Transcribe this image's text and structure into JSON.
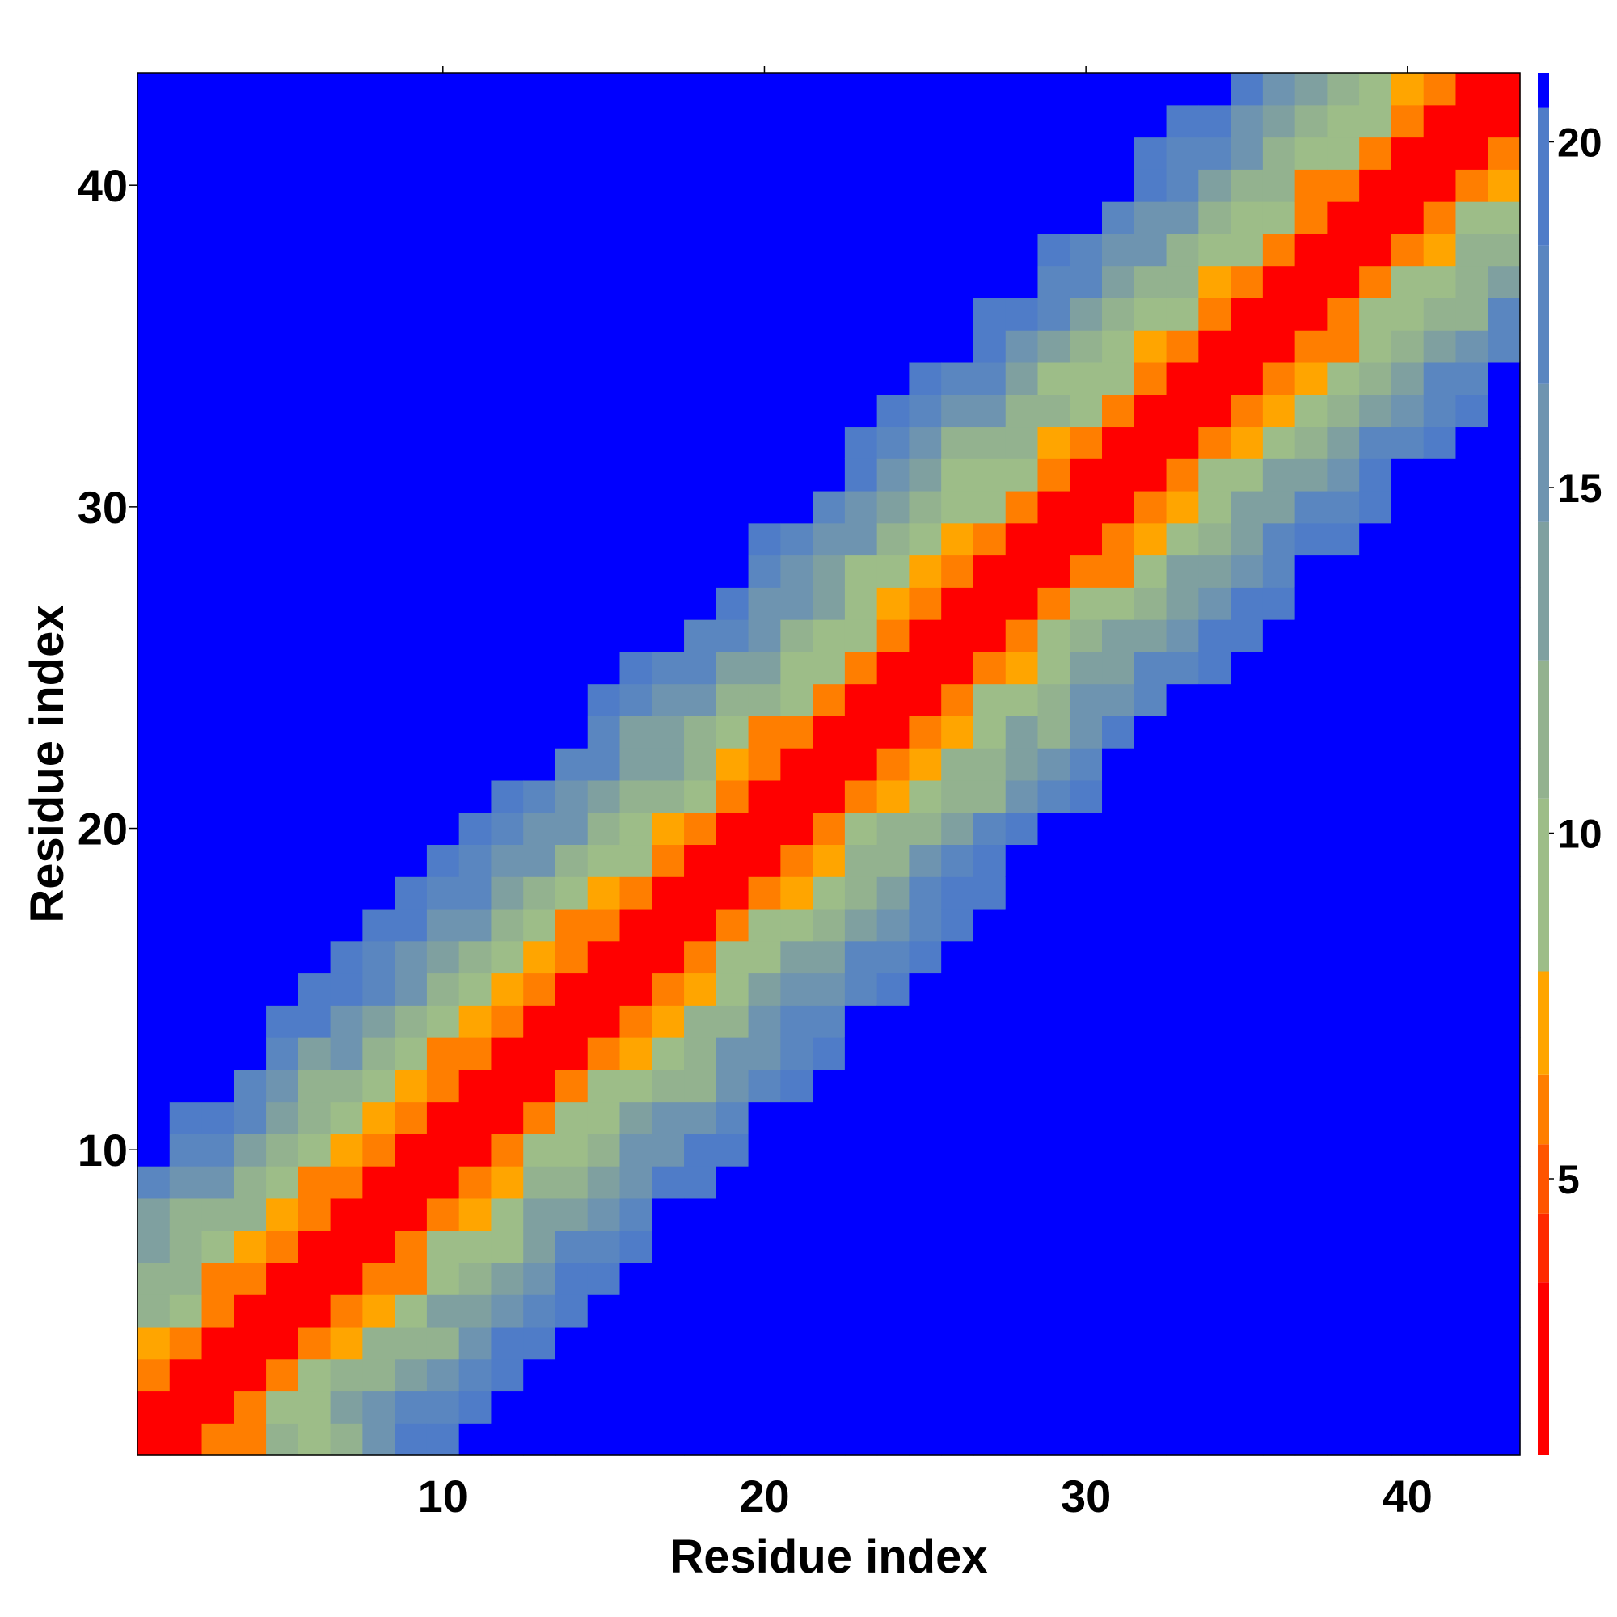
{
  "chart_data": {
    "type": "heatmap",
    "title": "",
    "xlabel": "Residue index",
    "ylabel": "Residue index",
    "x_range": [
      1,
      43
    ],
    "y_range": [
      1,
      43
    ],
    "x_ticks": [
      10,
      20,
      30,
      40
    ],
    "y_ticks": [
      10,
      20,
      30,
      40
    ],
    "colorbar": {
      "ticks": [
        5,
        10,
        15,
        20
      ],
      "range": [
        1,
        21
      ],
      "levels": [
        {
          "min": 1,
          "max": 3.5,
          "color": "#ff0000"
        },
        {
          "min": 3.5,
          "max": 4.5,
          "color": "#ff2a00"
        },
        {
          "min": 4.5,
          "max": 5.5,
          "color": "#ff5400"
        },
        {
          "min": 5.5,
          "max": 6.5,
          "color": "#ff7e00"
        },
        {
          "min": 6.5,
          "max": 8.0,
          "color": "#ffa500"
        },
        {
          "min": 8.0,
          "max": 10.5,
          "color": "#9dbd88"
        },
        {
          "min": 10.5,
          "max": 12.5,
          "color": "#93b28f"
        },
        {
          "min": 12.5,
          "max": 14.5,
          "color": "#7fa0a0"
        },
        {
          "min": 14.5,
          "max": 16.5,
          "color": "#6e94b0"
        },
        {
          "min": 16.5,
          "max": 18.5,
          "color": "#5a86c0"
        },
        {
          "min": 18.5,
          "max": 20.5,
          "color": "#4f7cc8"
        },
        {
          "min": 20.5,
          "max": 21,
          "color": "#0000ff"
        }
      ]
    },
    "description": "Symmetric-like residue-residue distance map: values rise with distance from diagonal; red (<3.5) on diagonal, orange bands, green/grey-blue mid-range, blue (>20.5) far off-diagonal."
  }
}
